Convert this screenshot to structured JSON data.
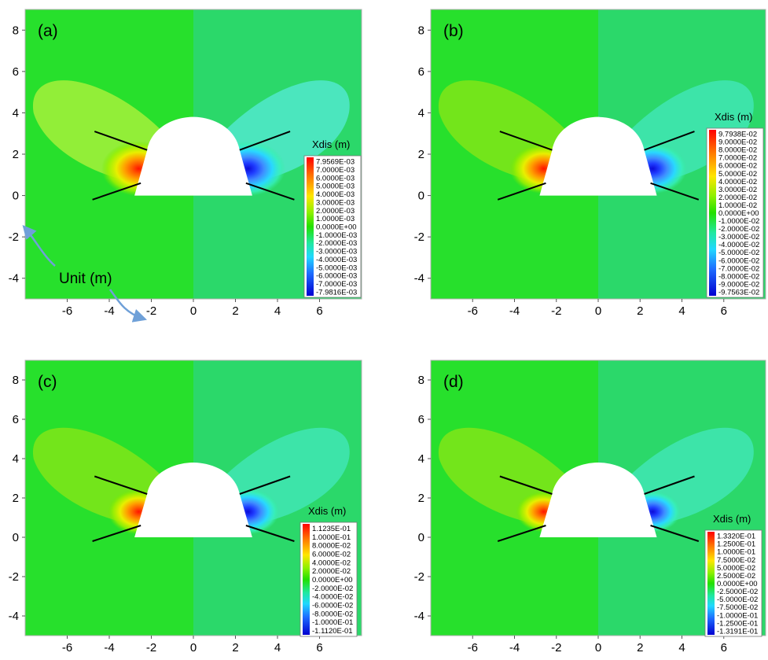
{
  "chart_data": [
    {
      "type": "heatmap",
      "label": "(a)",
      "quantity": "Xdis (m)",
      "xlim": [
        -8,
        8
      ],
      "ylim": [
        -5,
        9
      ],
      "x_ticks": [
        "-6",
        "-4",
        "-2",
        "0",
        "2",
        "4",
        "6"
      ],
      "y_ticks": [
        "8",
        "6",
        "4",
        "2",
        "0",
        "-2",
        "-4"
      ],
      "legend_levels": [
        "7.9569E-03",
        "7.0000E-03",
        "6.0000E-03",
        "5.0000E-03",
        "4.0000E-03",
        "3.0000E-03",
        "2.0000E-03",
        "1.0000E-03",
        "0.0000E+00",
        "-1.0000E-03",
        "-2.0000E-03",
        "-3.0000E-03",
        "-4.0000E-03",
        "-5.0000E-03",
        "-6.0000E-03",
        "-7.0000E-03",
        "-7.9816E-03"
      ],
      "annotation": "Unit (m)"
    },
    {
      "type": "heatmap",
      "label": "(b)",
      "quantity": "Xdis (m)",
      "xlim": [
        -8,
        8
      ],
      "ylim": [
        -5,
        9
      ],
      "x_ticks": [
        "-6",
        "-4",
        "-2",
        "0",
        "2",
        "4",
        "6"
      ],
      "y_ticks": [
        "8",
        "6",
        "4",
        "2",
        "0",
        "-2",
        "-4"
      ],
      "legend_levels": [
        "9.7938E-02",
        "9.0000E-02",
        "8.0000E-02",
        "7.0000E-02",
        "6.0000E-02",
        "5.0000E-02",
        "4.0000E-02",
        "3.0000E-02",
        "2.0000E-02",
        "1.0000E-02",
        "0.0000E+00",
        "-1.0000E-02",
        "-2.0000E-02",
        "-3.0000E-02",
        "-4.0000E-02",
        "-5.0000E-02",
        "-6.0000E-02",
        "-7.0000E-02",
        "-8.0000E-02",
        "-9.0000E-02",
        "-9.7563E-02"
      ]
    },
    {
      "type": "heatmap",
      "label": "(c)",
      "quantity": "Xdis (m)",
      "xlim": [
        -8,
        8
      ],
      "ylim": [
        -5,
        9
      ],
      "x_ticks": [
        "-6",
        "-4",
        "-2",
        "0",
        "2",
        "4",
        "6"
      ],
      "y_ticks": [
        "8",
        "6",
        "4",
        "2",
        "0",
        "-2",
        "-4"
      ],
      "legend_levels": [
        "1.1235E-01",
        "1.0000E-01",
        "8.0000E-02",
        "6.0000E-02",
        "4.0000E-02",
        "2.0000E-02",
        "0.0000E+00",
        "-2.0000E-02",
        "-4.0000E-02",
        "-6.0000E-02",
        "-8.0000E-02",
        "-1.0000E-01",
        "-1.1120E-01"
      ]
    },
    {
      "type": "heatmap",
      "label": "(d)",
      "quantity": "Xdis (m)",
      "xlim": [
        -8,
        8
      ],
      "ylim": [
        -5,
        9
      ],
      "x_ticks": [
        "-6",
        "-4",
        "-2",
        "0",
        "2",
        "4",
        "6"
      ],
      "y_ticks": [
        "8",
        "6",
        "4",
        "2",
        "0",
        "-2",
        "-4"
      ],
      "legend_levels": [
        "1.3320E-01",
        "1.2500E-01",
        "1.0000E-01",
        "7.5000E-02",
        "5.0000E-02",
        "2.5000E-02",
        "0.0000E+00",
        "-2.5000E-02",
        "-5.0000E-02",
        "-7.5000E-02",
        "-1.0000E-01",
        "-1.2500E-01",
        "-1.3191E-01"
      ]
    }
  ],
  "colors": {
    "field_base": "#27e02c",
    "field_right": "#2bd86a",
    "warm_peak": "#ff1a00",
    "cold_peak": "#0b0bd8",
    "tunnel": "#ffffff",
    "bolt": "#000000",
    "arrow": "#6fa0d8"
  }
}
